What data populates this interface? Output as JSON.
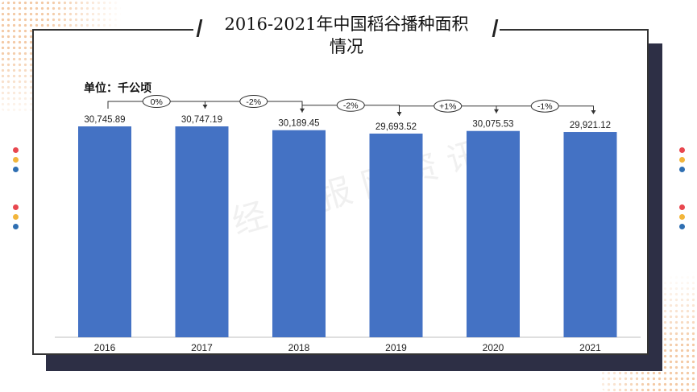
{
  "title": "2016-2021年中国稻谷播种面积情况",
  "title_line1": "2016-2021年中国稻谷播种面积",
  "title_line2": "情况",
  "unit_label": "单位：千公顷",
  "watermark": "华 经 情 报 网 资 讯",
  "colors": {
    "bar": "#4472c4",
    "panel_shadow": "#2d2f45",
    "dots": "#f3c9a4"
  },
  "chart_data": {
    "type": "bar",
    "title": "2016-2021年中国稻谷播种面积情况",
    "categories": [
      "2016",
      "2017",
      "2018",
      "2019",
      "2020",
      "2021"
    ],
    "values": [
      30745.89,
      30747.19,
      30189.45,
      29693.52,
      30075.53,
      29921.12
    ],
    "value_labels": [
      "30,745.89",
      "30,747.19",
      "30,189.45",
      "29,693.52",
      "30,075.53",
      "29,921.12"
    ],
    "changes": [
      "0%",
      "-2%",
      "-2%",
      "+1%",
      "-1%"
    ],
    "ylabel": "单位：千公顷",
    "ylim": [
      0,
      32000
    ],
    "grid": false,
    "legend": "none"
  }
}
